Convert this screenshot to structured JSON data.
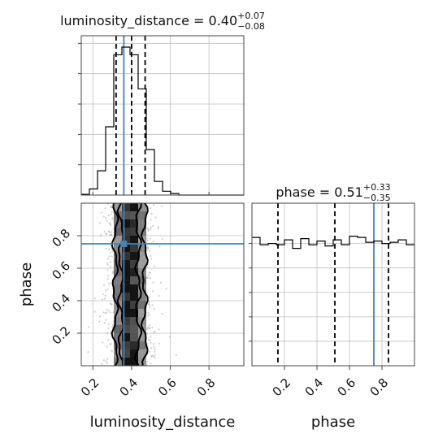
{
  "chart_data": {
    "type": "corner",
    "parameters": [
      "luminosity_distance",
      "phase"
    ],
    "truth": {
      "luminosity_distance": 0.36,
      "phase": 0.75
    },
    "colors": {
      "truth": "#4682b4",
      "hist": "#000000",
      "grid": "#bfbfbf",
      "scatter": "#aaaaaa"
    },
    "grid": true,
    "titles": {
      "luminosity_distance": {
        "prefix": "luminosity_distance = 0.40",
        "plus": "+0.07",
        "minus": "−0.08"
      },
      "phase": {
        "prefix": "phase = 0.51",
        "plus": "+0.33",
        "minus": "−0.35"
      }
    },
    "axis_labels": {
      "x_left": "luminosity_distance",
      "x_right": "phase",
      "y_lower": "phase"
    },
    "x_ticks_luminosity_distance": [
      "0.2",
      "0.4",
      "0.6",
      "0.8"
    ],
    "x_ticks_phase": [
      "0.2",
      "0.4",
      "0.6",
      "0.8"
    ],
    "y_ticks_phase": [
      "0.2",
      "0.4",
      "0.6",
      "0.8"
    ],
    "ranges": {
      "luminosity_distance": [
        0.14,
        0.98
      ],
      "phase": [
        0.0,
        1.0
      ]
    },
    "quantiles": {
      "luminosity_distance": [
        0.32,
        0.4,
        0.47
      ],
      "phase": [
        0.16,
        0.51,
        0.84
      ]
    },
    "hist_luminosity_distance": {
      "edges": [
        0.14,
        0.182,
        0.224,
        0.266,
        0.308,
        0.35,
        0.392,
        0.434,
        0.476,
        0.518,
        0.56,
        0.602,
        0.644,
        0.686,
        0.728,
        0.77,
        0.812,
        0.854,
        0.896,
        0.938,
        0.98
      ],
      "counts": [
        1,
        8,
        32,
        90,
        185,
        195,
        185,
        140,
        60,
        18,
        5,
        2,
        0,
        0,
        0,
        0,
        0,
        0,
        0,
        0
      ]
    },
    "hist_phase": {
      "edges": [
        0.0,
        0.05,
        0.1,
        0.15,
        0.2,
        0.25,
        0.3,
        0.35,
        0.4,
        0.45,
        0.5,
        0.55,
        0.6,
        0.65,
        0.7,
        0.75,
        0.8,
        0.85,
        0.9,
        0.95,
        1.0
      ],
      "counts": [
        105,
        99,
        100,
        99,
        103,
        96,
        104,
        99,
        102,
        98,
        103,
        99,
        106,
        105,
        101,
        102,
        100,
        101,
        103,
        99
      ]
    },
    "density_2d": {
      "x_center": 0.39,
      "x_sigma": 0.055,
      "x_range": [
        0.14,
        0.98
      ],
      "y_range": [
        0.0,
        1.0
      ]
    }
  }
}
